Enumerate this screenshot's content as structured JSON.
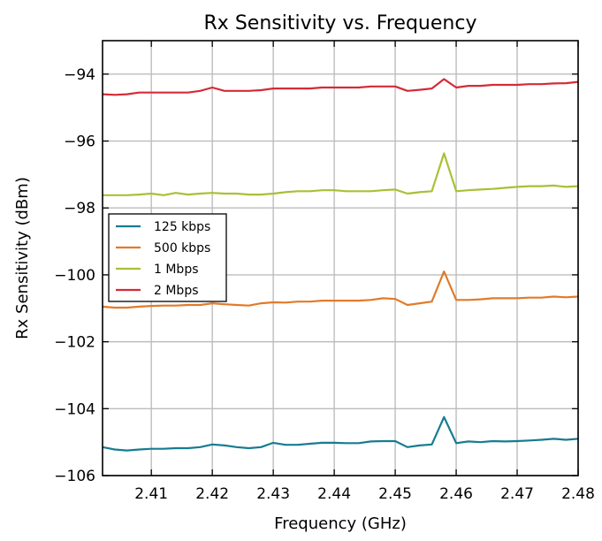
{
  "chart_data": {
    "type": "line",
    "title": "Rx Sensitivity vs. Frequency",
    "xlabel": "Frequency (GHz)",
    "ylabel": "Rx Sensitivity (dBm)",
    "xlim": [
      2.402,
      2.48
    ],
    "ylim": [
      -106,
      -93
    ],
    "xticks": [
      2.41,
      2.42,
      2.43,
      2.44,
      2.45,
      2.46,
      2.47,
      2.48
    ],
    "xtick_labels": [
      "2.41",
      "2.42",
      "2.43",
      "2.44",
      "2.45",
      "2.46",
      "2.47",
      "2.48"
    ],
    "yticks": [
      -106,
      -104,
      -102,
      -100,
      -98,
      -96,
      -94
    ],
    "ytick_labels": [
      "−106",
      "−104",
      "−102",
      "−100",
      "−98",
      "−96",
      "−94"
    ],
    "grid": true,
    "legend_position": "center-left",
    "x": [
      2.402,
      2.404,
      2.406,
      2.408,
      2.41,
      2.412,
      2.414,
      2.416,
      2.418,
      2.42,
      2.422,
      2.424,
      2.426,
      2.428,
      2.43,
      2.432,
      2.434,
      2.436,
      2.438,
      2.44,
      2.442,
      2.444,
      2.446,
      2.448,
      2.45,
      2.452,
      2.454,
      2.456,
      2.458,
      2.46,
      2.462,
      2.464,
      2.466,
      2.468,
      2.47,
      2.472,
      2.474,
      2.476,
      2.478,
      2.48
    ],
    "series": [
      {
        "name": "125 kbps",
        "color": "#167c91",
        "values": [
          -105.15,
          -105.22,
          -105.25,
          -105.22,
          -105.2,
          -105.2,
          -105.18,
          -105.18,
          -105.15,
          -105.07,
          -105.1,
          -105.15,
          -105.18,
          -105.15,
          -105.02,
          -105.08,
          -105.08,
          -105.05,
          -105.02,
          -105.02,
          -105.03,
          -105.03,
          -104.98,
          -104.97,
          -104.97,
          -105.15,
          -105.1,
          -105.07,
          -104.25,
          -105.03,
          -104.98,
          -105.0,
          -104.97,
          -104.98,
          -104.97,
          -104.95,
          -104.93,
          -104.9,
          -104.93,
          -104.9
        ]
      },
      {
        "name": "500 kbps",
        "color": "#e07b2b",
        "values": [
          -100.95,
          -100.98,
          -100.98,
          -100.95,
          -100.93,
          -100.92,
          -100.92,
          -100.9,
          -100.9,
          -100.85,
          -100.88,
          -100.9,
          -100.92,
          -100.85,
          -100.82,
          -100.83,
          -100.8,
          -100.8,
          -100.77,
          -100.77,
          -100.77,
          -100.77,
          -100.75,
          -100.7,
          -100.72,
          -100.9,
          -100.85,
          -100.8,
          -99.9,
          -100.75,
          -100.75,
          -100.73,
          -100.7,
          -100.7,
          -100.7,
          -100.68,
          -100.68,
          -100.65,
          -100.67,
          -100.65
        ]
      },
      {
        "name": "1 Mbps",
        "color": "#a7c136",
        "values": [
          -97.62,
          -97.62,
          -97.62,
          -97.6,
          -97.57,
          -97.62,
          -97.55,
          -97.6,
          -97.57,
          -97.55,
          -97.57,
          -97.57,
          -97.6,
          -97.6,
          -97.57,
          -97.53,
          -97.5,
          -97.5,
          -97.47,
          -97.47,
          -97.5,
          -97.5,
          -97.5,
          -97.47,
          -97.45,
          -97.57,
          -97.53,
          -97.5,
          -96.37,
          -97.5,
          -97.47,
          -97.45,
          -97.43,
          -97.4,
          -97.37,
          -97.35,
          -97.35,
          -97.33,
          -97.37,
          -97.35
        ]
      },
      {
        "name": "2 Mbps",
        "color": "#d42b37",
        "values": [
          -94.6,
          -94.62,
          -94.6,
          -94.55,
          -94.55,
          -94.55,
          -94.55,
          -94.55,
          -94.5,
          -94.4,
          -94.5,
          -94.5,
          -94.5,
          -94.48,
          -94.43,
          -94.43,
          -94.43,
          -94.43,
          -94.4,
          -94.4,
          -94.4,
          -94.4,
          -94.37,
          -94.37,
          -94.37,
          -94.5,
          -94.47,
          -94.43,
          -94.15,
          -94.4,
          -94.35,
          -94.35,
          -94.32,
          -94.32,
          -94.32,
          -94.3,
          -94.3,
          -94.28,
          -94.27,
          -94.23
        ]
      }
    ]
  }
}
